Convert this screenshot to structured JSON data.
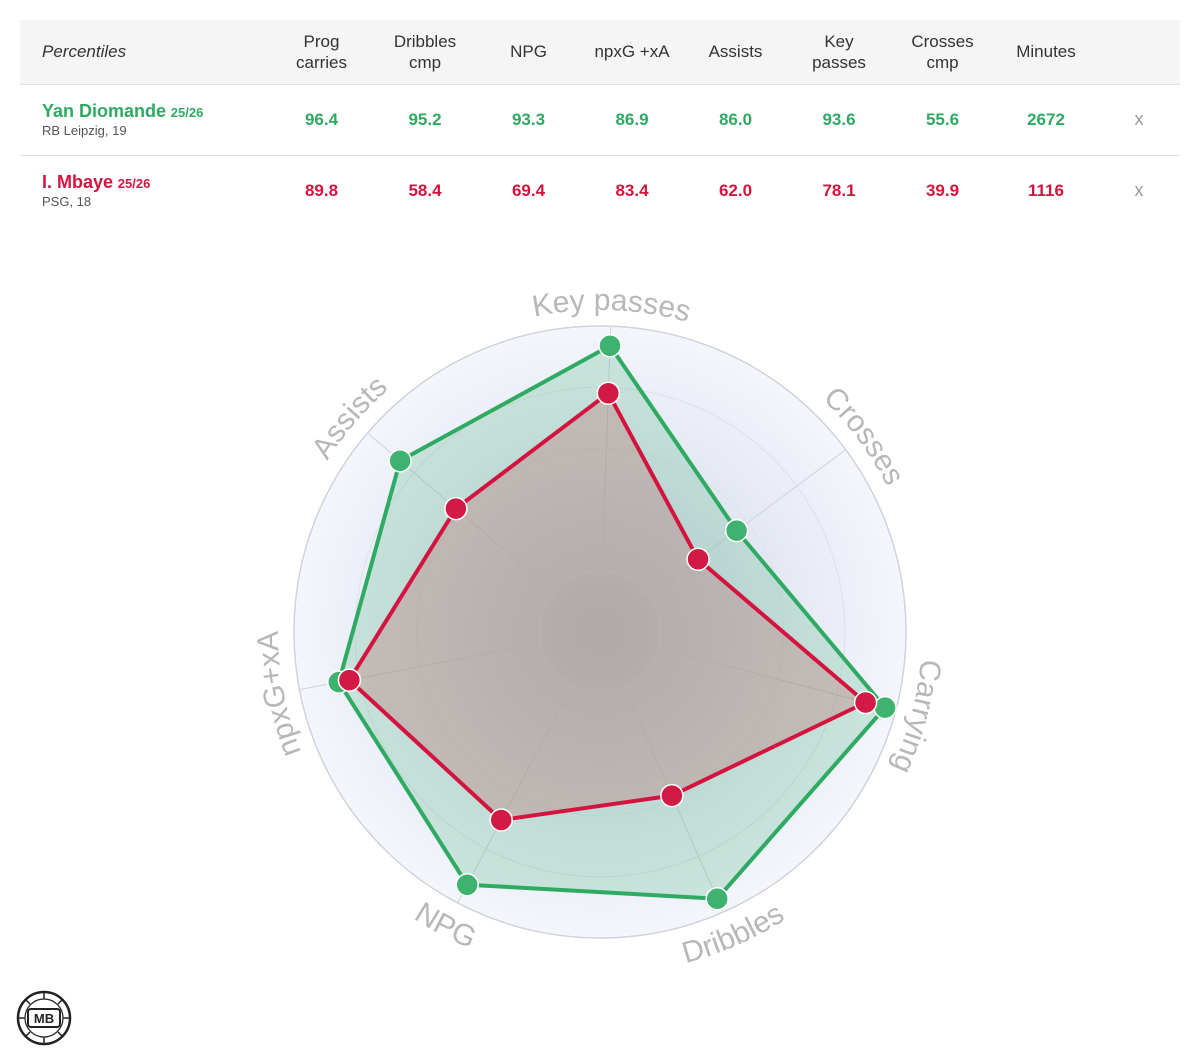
{
  "table": {
    "header_label": "Percentiles",
    "columns": [
      {
        "line1": "Prog",
        "line2": "carries"
      },
      {
        "line1": "Dribbles",
        "line2": "cmp"
      },
      {
        "line1": "NPG",
        "line2": ""
      },
      {
        "line1": "npxG +xA",
        "line2": ""
      },
      {
        "line1": "Assists",
        "line2": ""
      },
      {
        "line1": "Key",
        "line2": "passes"
      },
      {
        "line1": "Crosses",
        "line2": "cmp"
      },
      {
        "line1": "Minutes",
        "line2": ""
      }
    ],
    "players": [
      {
        "name": "Yan Diomande",
        "season": "25/26",
        "sub": "RB Leipzig, 19",
        "values": [
          "96.4",
          "95.2",
          "93.3",
          "86.9",
          "86.0",
          "93.6",
          "55.6",
          "2672"
        ],
        "remove": "x"
      },
      {
        "name": "I. Mbaye",
        "season": "25/26",
        "sub": "PSG, 18",
        "values": [
          "89.8",
          "58.4",
          "69.4",
          "83.4",
          "62.0",
          "78.1",
          "39.9",
          "1116"
        ],
        "remove": "x"
      }
    ]
  },
  "colors": {
    "player1": "#2eaa62",
    "player2": "#d4143f",
    "axis_label": "#b8b8b8"
  },
  "logo_text": "MB",
  "chart_data": {
    "type": "radar",
    "axes": [
      "Key passes",
      "Crosses",
      "Carrying",
      "Dribbles",
      "NPG",
      "npxG+xA",
      "Assists"
    ],
    "rlim": [
      0,
      100
    ],
    "series": [
      {
        "name": "Yan Diomande",
        "values": [
          93.6,
          55.6,
          96.4,
          95.2,
          93.3,
          86.9,
          86.0
        ]
      },
      {
        "name": "I. Mbaye",
        "values": [
          78.1,
          39.9,
          89.8,
          58.4,
          69.4,
          83.4,
          62.0
        ]
      }
    ]
  }
}
